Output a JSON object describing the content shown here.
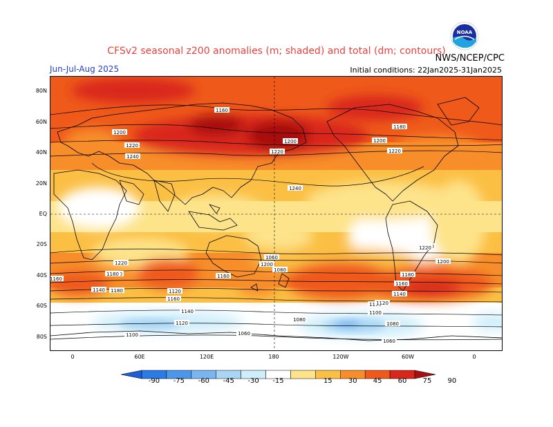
{
  "header": {
    "title": "CFSv2 seasonal z200 anomalies (m; shaded) and total (dm; contours)",
    "period": "Jun-Jul-Aug 2025",
    "agency": "NWS/NCEP/CPC",
    "initial_conditions": "Initial conditions: 22Jan2025-31Jan2025",
    "logo_text": "NOAA"
  },
  "map": {
    "lat_labels": [
      "80N",
      "60N",
      "40N",
      "20N",
      "EQ",
      "20S",
      "40S",
      "60S",
      "80S"
    ],
    "lon_labels": [
      "0",
      "60E",
      "120E",
      "180",
      "120W",
      "60W",
      "0"
    ],
    "contour_labels": [
      "1160",
      "1200",
      "1220",
      "1240",
      "1200",
      "1220",
      "1240",
      "1180",
      "1200",
      "1220",
      "1240",
      "1220",
      "1200",
      "1180",
      "1160",
      "1140",
      "1120",
      "1100",
      "1080",
      "1060",
      "1200",
      "1180",
      "1160",
      "1140",
      "1120",
      "1100",
      "1080",
      "1060",
      "1220",
      "1200",
      "1180",
      "1160",
      "1140",
      "1120",
      "1100",
      "1080",
      "1060",
      "1160"
    ]
  },
  "colorbar": {
    "labels": [
      "-90",
      "-75",
      "-60",
      "-45",
      "-30",
      "-15",
      "15",
      "30",
      "45",
      "60",
      "75",
      "90"
    ],
    "colors": [
      "#1d5fd6",
      "#2a7be6",
      "#4d97ea",
      "#79b6f0",
      "#a9d6f5",
      "#cfeefb",
      "#ffffff",
      "#fde38a",
      "#fbbf44",
      "#f78e2a",
      "#ef5a1a",
      "#d9261b",
      "#a80f10"
    ]
  },
  "palette": {
    "title_color": "#e8433f",
    "period_color": "#1d3fc9"
  }
}
